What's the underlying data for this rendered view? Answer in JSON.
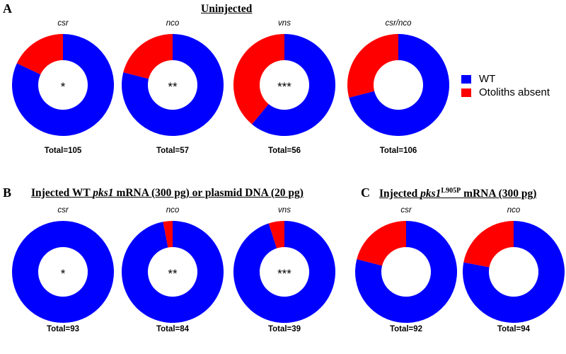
{
  "panels": {
    "A": {
      "letter": "A",
      "title": "Uninjected"
    },
    "B": {
      "letter": "B",
      "title_part1": "Injected WT ",
      "title_gene": "pks1",
      "title_part2": " mRNA (300 pg) or plasmid DNA (20 pg)"
    },
    "C": {
      "letter": "C",
      "title_part1": "Injected ",
      "title_gene": "pks1",
      "title_sup": "L905P",
      "title_part2": " mRNA (300 pg)"
    }
  },
  "legend": [
    {
      "label": "WT",
      "color": "#0000ff"
    },
    {
      "label": "Otoliths absent",
      "color": "#ff0000"
    }
  ],
  "chart_data": [
    {
      "type": "pie",
      "panel": "A",
      "genotype": "csr",
      "total_label": "Total=105",
      "center_label": "*",
      "series": [
        {
          "name": "WT",
          "value": 0.82
        },
        {
          "name": "Otoliths absent",
          "value": 0.18
        }
      ]
    },
    {
      "type": "pie",
      "panel": "A",
      "genotype": "nco",
      "total_label": "Total=57",
      "center_label": "**",
      "series": [
        {
          "name": "WT",
          "value": 0.79
        },
        {
          "name": "Otoliths absent",
          "value": 0.21
        }
      ]
    },
    {
      "type": "pie",
      "panel": "A",
      "genotype": "vns",
      "total_label": "Total=56",
      "center_label": "***",
      "series": [
        {
          "name": "WT",
          "value": 0.61
        },
        {
          "name": "Otoliths absent",
          "value": 0.39
        }
      ]
    },
    {
      "type": "pie",
      "panel": "A",
      "genotype": "csr/nco",
      "total_label": "Total=106",
      "center_label": "",
      "series": [
        {
          "name": "WT",
          "value": 0.71
        },
        {
          "name": "Otoliths absent",
          "value": 0.29
        }
      ]
    },
    {
      "type": "pie",
      "panel": "B",
      "genotype": "csr",
      "total_label": "Total=93",
      "center_label": "*",
      "series": [
        {
          "name": "WT",
          "value": 1.0
        },
        {
          "name": "Otoliths absent",
          "value": 0.0
        }
      ]
    },
    {
      "type": "pie",
      "panel": "B",
      "genotype": "nco",
      "total_label": "Total=84",
      "center_label": "**",
      "series": [
        {
          "name": "WT",
          "value": 0.97
        },
        {
          "name": "Otoliths absent",
          "value": 0.03
        }
      ]
    },
    {
      "type": "pie",
      "panel": "B",
      "genotype": "vns",
      "total_label": "Total=39",
      "center_label": "***",
      "series": [
        {
          "name": "WT",
          "value": 0.95
        },
        {
          "name": "Otoliths absent",
          "value": 0.05
        }
      ]
    },
    {
      "type": "pie",
      "panel": "C",
      "genotype": "csr",
      "total_label": "Total=92",
      "center_label": "",
      "series": [
        {
          "name": "WT",
          "value": 0.79
        },
        {
          "name": "Otoliths absent",
          "value": 0.21
        }
      ]
    },
    {
      "type": "pie",
      "panel": "C",
      "genotype": "nco",
      "total_label": "Total=94",
      "center_label": "",
      "series": [
        {
          "name": "WT",
          "value": 0.78
        },
        {
          "name": "Otoliths absent",
          "value": 0.22
        }
      ]
    }
  ]
}
